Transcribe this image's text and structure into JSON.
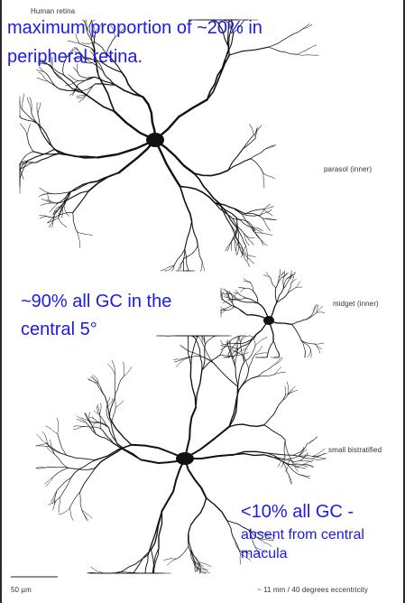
{
  "figure": {
    "title": "Human retina",
    "cell_labels": {
      "parasol": "parasol (inner)",
      "midget": "midget (inner)",
      "bistratified": "small bistratified"
    },
    "scale_label": "50 µm",
    "eccentricity_label": "~ 11 mm / 40 degrees eccentricity"
  },
  "annotations": {
    "parasol_line1": "maximum proportion of ~20% in",
    "parasol_line2": "peripheral retina.",
    "midget_line1": "~90% all GC in the",
    "midget_line2": "central 5°",
    "bistratified_line1": "<10% all GC  -",
    "bistratified_line2": "absent from central",
    "bistratified_line3": "macula"
  },
  "colors": {
    "annotation_text": "#1d1ae6",
    "dendrite": "#111111"
  }
}
